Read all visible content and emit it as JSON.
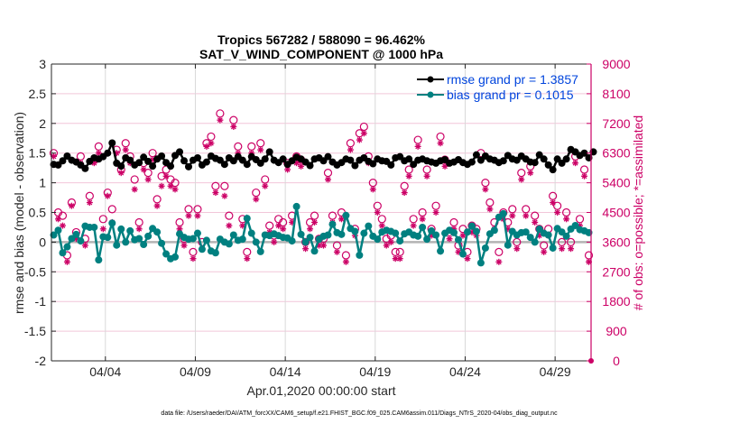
{
  "chart_data": {
    "type": "line",
    "title": "Tropics 567282 / 588090 = 96.462%",
    "subtitle": "SAT_V_WIND_COMPONENT @ 1000 hPa",
    "xlabel": "Apr.01,2020 00:00:00 start",
    "ylabel": "rmse and bias (model - observation)",
    "ylabel_right": "# of obs: o=possible; *=assimilated",
    "ylim": [
      -2,
      3
    ],
    "ylim_right": [
      0,
      9000
    ],
    "xlim_days": [
      0,
      30
    ],
    "yticks": [
      "3",
      "2.5",
      "2",
      "1.5",
      "1",
      "0.5",
      "0",
      "-0.5",
      "-1",
      "-1.5",
      "-2"
    ],
    "ytick_values": [
      3,
      2.5,
      2,
      1.5,
      1,
      0.5,
      0,
      -0.5,
      -1,
      -1.5,
      -2
    ],
    "yticks_right": [
      "9000",
      "8100",
      "7200",
      "6300",
      "5400",
      "4500",
      "3600",
      "2700",
      "1800",
      "900",
      "0"
    ],
    "ytick_right_values": [
      9000,
      8100,
      7200,
      6300,
      5400,
      4500,
      3600,
      2700,
      1800,
      900,
      0
    ],
    "xticks": [
      "04/04",
      "04/09",
      "04/14",
      "04/19",
      "04/24",
      "04/29"
    ],
    "xtick_days": [
      3,
      8,
      13,
      18,
      23,
      28
    ],
    "grid": true,
    "legend_position": "top-right",
    "legend": [
      "rmse grand pr = 1.3857",
      "bias grand pr = 0.1015"
    ],
    "zero_line": 0,
    "colors": {
      "rmse": "#000000",
      "bias": "#008080",
      "obs": "#cc0066",
      "axis_right": "#cc0066",
      "legend_text": "#0044dd"
    },
    "x_step_days": 0.25,
    "series": [
      {
        "name": "rmse grand pr = 1.3857",
        "axis": "left",
        "values": [
          1.31,
          1.3,
          1.37,
          1.45,
          1.38,
          1.35,
          1.3,
          1.24,
          1.36,
          1.42,
          1.4,
          1.44,
          1.5,
          1.67,
          1.33,
          1.28,
          1.42,
          1.38,
          1.3,
          1.34,
          1.43,
          1.36,
          1.28,
          1.4,
          1.45,
          1.34,
          1.28,
          1.46,
          1.52,
          1.37,
          1.27,
          1.38,
          1.42,
          1.3,
          1.35,
          1.45,
          1.41,
          1.38,
          1.31,
          1.42,
          1.37,
          1.44,
          1.38,
          1.31,
          1.44,
          1.39,
          1.33,
          1.4,
          1.52,
          1.38,
          1.34,
          1.4,
          1.31,
          1.37,
          1.43,
          1.4,
          1.35,
          1.29,
          1.4,
          1.42,
          1.37,
          1.44,
          1.35,
          1.3,
          1.34,
          1.4,
          1.38,
          1.29,
          1.38,
          1.42,
          1.36,
          1.32,
          1.4,
          1.37,
          1.36,
          1.3,
          1.42,
          1.44,
          1.37,
          1.4,
          1.31,
          1.38,
          1.4,
          1.37,
          1.35,
          1.33,
          1.37,
          1.39,
          1.33,
          1.35,
          1.39,
          1.34,
          1.31,
          1.35,
          1.47,
          1.38,
          1.45,
          1.4,
          1.38,
          1.34,
          1.37,
          1.46,
          1.4,
          1.38,
          1.45,
          1.4,
          1.35,
          1.34,
          1.47,
          1.4,
          1.3,
          1.22,
          1.4,
          1.33,
          1.4,
          1.56,
          1.52,
          1.46,
          1.5,
          1.42,
          1.52
        ]
      },
      {
        "name": "bias grand pr = 0.1015",
        "axis": "left",
        "values": [
          0.12,
          0.2,
          -0.18,
          -0.08,
          0.06,
          0.13,
          0.02,
          0.27,
          0.25,
          0.25,
          -0.3,
          0.09,
          0.08,
          0.32,
          -0.05,
          0.22,
          0.0,
          0.19,
          0.04,
          0.06,
          -0.04,
          0.1,
          0.23,
          0.17,
          -0.02,
          -0.2,
          -0.28,
          -0.25,
          0.14,
          0.08,
          0.05,
          0.06,
          0.15,
          -0.12,
          0.03,
          -0.15,
          -0.18,
          0.05,
          0.0,
          -0.03,
          0.12,
          0.03,
          0.05,
          0.4,
          0.15,
          0.0,
          -0.16,
          0.12,
          0.11,
          0.14,
          0.11,
          0.08,
          0.07,
          0.02,
          0.6,
          0.13,
          0.0,
          0.08,
          -0.15,
          0.05,
          0.1,
          0.12,
          0.3,
          0.16,
          0.13,
          0.45,
          0.23,
          0.18,
          -0.22,
          0.15,
          0.27,
          0.1,
          0.05,
          0.17,
          0.2,
          0.18,
          0.15,
          0.02,
          0.14,
          0.17,
          0.12,
          0.1,
          0.25,
          0.05,
          0.19,
          0.12,
          -0.15,
          0.15,
          0.2,
          0.16,
          0.04,
          -0.2,
          0.17,
          0.27,
          0.18,
          -0.35,
          -0.1,
          0.14,
          0.2,
          0.42,
          0.48,
          -0.05,
          0.18,
          0.12,
          0.16,
          0.17,
          0.08,
          0.0,
          0.22,
          0.15,
          0.12,
          -0.1,
          0.23,
          0.17,
          0.1,
          0.22,
          0.28,
          0.21,
          0.19,
          0.16
        ]
      },
      {
        "name": "possible obs (o)",
        "axis": "right",
        "marker": "circle",
        "values": [
          6300,
          4500,
          4400,
          3200,
          4800,
          3900,
          6200,
          3700,
          5000,
          6100,
          6500,
          4300,
          5100,
          4600,
          6400,
          5800,
          6600,
          6200,
          5500,
          4200,
          6000,
          5700,
          6300,
          4900,
          5600,
          5800,
          5500,
          5400,
          4200,
          3700,
          4600,
          3300,
          4600,
          3600,
          6600,
          6800,
          5300,
          7500,
          5300,
          4400,
          7300,
          6500,
          4300,
          3300,
          6500,
          5100,
          6600,
          5500,
          4100,
          3800,
          4300,
          4200,
          6000,
          4400,
          6200,
          6100,
          3600,
          4200,
          4400,
          3700,
          3700,
          5700,
          4400,
          3500,
          4500,
          3200,
          6600,
          4000,
          6900,
          7100,
          6200,
          5400,
          4700,
          4300,
          3700,
          3800,
          3300,
          3300,
          5300,
          5800,
          4300,
          6700,
          4500,
          5800,
          4000,
          4700,
          6800,
          6100,
          3900,
          4200,
          3500,
          4000,
          3300,
          4100,
          4000,
          6300,
          5400,
          4800,
          4200,
          3300,
          4500,
          4200,
          4600,
          3600,
          5700,
          4600,
          5900,
          4400,
          4000,
          3500,
          4000,
          5000,
          4700,
          3600,
          4500,
          3600,
          6200,
          4300,
          5800,
          3200
        ]
      },
      {
        "name": "assimilated obs (*)",
        "axis": "right",
        "marker": "asterisk",
        "values": [
          6200,
          4300,
          4100,
          3000,
          4700,
          3700,
          6000,
          3500,
          4800,
          6000,
          6300,
          4000,
          5000,
          4200,
          6300,
          5700,
          6400,
          6000,
          5200,
          4000,
          5800,
          5500,
          6100,
          4700,
          5300,
          5600,
          5300,
          5200,
          4000,
          3500,
          4400,
          3100,
          4400,
          3400,
          6500,
          6600,
          5100,
          7300,
          5000,
          4100,
          7100,
          6300,
          4100,
          3100,
          6300,
          4900,
          6400,
          5300,
          3900,
          3600,
          4100,
          4000,
          5800,
          4200,
          6000,
          5900,
          3400,
          4000,
          4200,
          3500,
          3500,
          5500,
          4200,
          3300,
          4300,
          3000,
          6400,
          3800,
          6700,
          6900,
          6000,
          5200,
          4500,
          4100,
          3500,
          3600,
          3100,
          3100,
          5100,
          5600,
          4100,
          6500,
          4300,
          5600,
          3800,
          4500,
          6600,
          5900,
          3700,
          4000,
          3300,
          3800,
          3100,
          3900,
          3800,
          6100,
          5200,
          4600,
          4000,
          3000,
          4300,
          4000,
          4400,
          3400,
          5500,
          4400,
          5700,
          4200,
          3800,
          3300,
          3800,
          4800,
          4500,
          3400,
          4300,
          3400,
          6000,
          4100,
          5600,
          3000
        ]
      }
    ]
  },
  "footer": {
    "data_file": "data file: /Users/raeder/DAI/ATM_forcXX/CAM6_setup/f.e21.FHIST_BGC.f09_025.CAM6assim.011/Diags_NTrS_2020-04/obs_diag_output.nc"
  }
}
